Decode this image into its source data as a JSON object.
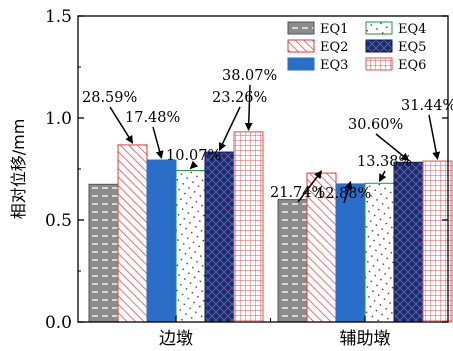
{
  "chart_data": {
    "type": "bar",
    "ylabel": "相对位移/mm",
    "ylim": [
      0.0,
      1.5
    ],
    "yticks": [
      "0.0",
      "0.5",
      "1.0",
      "1.5"
    ],
    "categories": [
      "边墩",
      "辅助墩"
    ],
    "series": [
      {
        "name": "EQ1",
        "values": [
          0.675,
          0.6
        ]
      },
      {
        "name": "EQ2",
        "values": [
          0.868,
          0.73
        ]
      },
      {
        "name": "EQ3",
        "values": [
          0.794,
          0.677
        ]
      },
      {
        "name": "EQ4",
        "values": [
          0.743,
          0.68
        ]
      },
      {
        "name": "EQ5",
        "values": [
          0.833,
          0.783
        ]
      },
      {
        "name": "EQ6",
        "values": [
          0.932,
          0.789
        ]
      }
    ],
    "annotations": [
      {
        "text": "28.59%",
        "category": 0,
        "series": 1
      },
      {
        "text": "17.48%",
        "category": 0,
        "series": 2
      },
      {
        "text": "10.07%",
        "category": 0,
        "series": 3
      },
      {
        "text": "23.26%",
        "category": 0,
        "series": 4
      },
      {
        "text": "38.07%",
        "category": 0,
        "series": 5
      },
      {
        "text": "21.74%",
        "category": 1,
        "series": 1
      },
      {
        "text": "12.88%",
        "category": 1,
        "series": 2
      },
      {
        "text": "13.38%",
        "category": 1,
        "series": 3
      },
      {
        "text": "30.60%",
        "category": 1,
        "series": 4
      },
      {
        "text": "31.44%",
        "category": 1,
        "series": 5
      }
    ],
    "legend_position": "top-right",
    "grid": false,
    "colors": {
      "EQ1": "#8c8c8c",
      "EQ2": "#e03a3a",
      "EQ3": "#2a6ec9",
      "EQ4": "#1a9a3a",
      "EQ5": "#1c2a70",
      "EQ6": "#e05050"
    }
  }
}
